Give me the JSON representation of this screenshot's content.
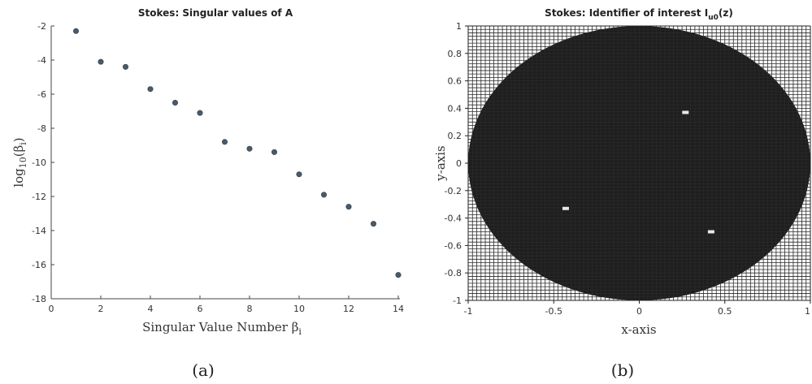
{
  "chart_data": [
    {
      "type": "scatter",
      "title": "Stokes: Singular values of A",
      "xlabel": "Singular Value Number β",
      "xlabel_subscript": "i",
      "ylabel": "log",
      "ylabel_parts": [
        "10",
        "(β",
        "i",
        ")"
      ],
      "xlim": [
        0,
        14
      ],
      "ylim": [
        -18,
        -2
      ],
      "x_ticks": [
        "0",
        "2",
        "4",
        "6",
        "8",
        "10",
        "12",
        "14"
      ],
      "y_ticks": [
        "-2",
        "-4",
        "-6",
        "-8",
        "-10",
        "-12",
        "-14",
        "-16",
        "-18"
      ],
      "x": [
        1,
        2,
        3,
        4,
        5,
        6,
        7,
        8,
        9,
        10,
        11,
        12,
        13,
        14
      ],
      "y": [
        -2.3,
        -4.1,
        -4.4,
        -5.7,
        -6.5,
        -7.1,
        -8.8,
        -9.2,
        -9.4,
        -10.7,
        -11.9,
        -12.6,
        -13.6,
        -16.6
      ],
      "marker_color": "#4a5a6a",
      "caption": "(a)"
    },
    {
      "type": "heatmap",
      "title": "Stokes: Identifier of interest I",
      "title_subscript": "u0",
      "title_suffix": "(z)",
      "xlabel": "x-axis",
      "ylabel": "y-axis",
      "xlim": [
        -1,
        1
      ],
      "ylim": [
        -1,
        1
      ],
      "x_ticks": [
        "-1",
        "-0.5",
        "0",
        "0.5",
        "1"
      ],
      "y_ticks": [
        "1",
        "0.8",
        "0.6",
        "0.4",
        "0.2",
        "0",
        "-0.2",
        "-0.4",
        "-0.6",
        "-0.8",
        "-1"
      ],
      "region": "disk of radius 1 centered at (0, 0)",
      "grid": true,
      "fill_inside": "#1e1e1e",
      "fill_outside": "#ffffff",
      "grid_color": "#2a2a2a",
      "bright_spots": [
        {
          "x": -0.43,
          "y": -0.33
        },
        {
          "x": 0.42,
          "y": -0.5
        },
        {
          "x": 0.27,
          "y": 0.37
        }
      ],
      "caption": "(b)"
    }
  ]
}
